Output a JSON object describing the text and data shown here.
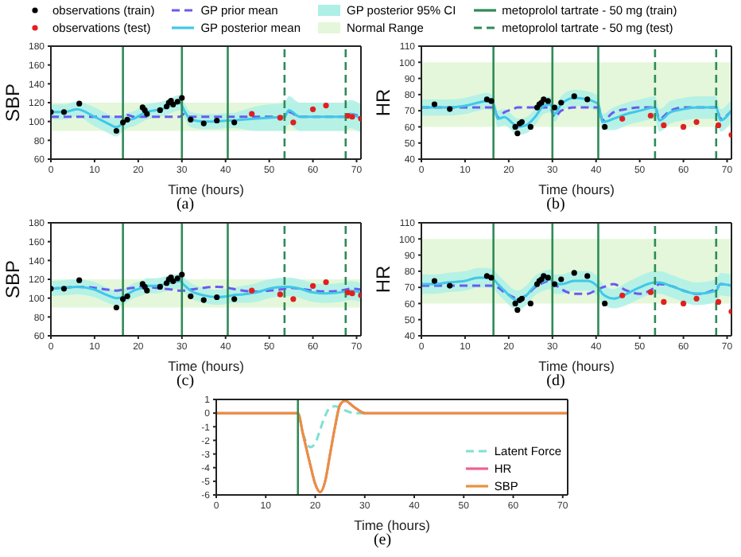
{
  "chart_data": [
    {
      "type": "line",
      "xlabel": "Time (hours)",
      "ylabel": "SBP",
      "xlim": [
        0,
        71
      ],
      "xticks": [
        0,
        10,
        20,
        30,
        40,
        50,
        60,
        70
      ],
      "ylim": [
        60,
        180
      ],
      "yticks": [
        60,
        80,
        100,
        120,
        140,
        160,
        180
      ],
      "legend": "top",
      "annotations": [
        "(a)"
      ],
      "x": [
        0,
        3,
        6,
        10,
        13,
        15,
        16.5,
        17.5,
        19,
        21,
        22,
        24,
        26,
        28,
        29.5,
        30.5,
        32,
        35,
        38,
        40.5,
        41.5,
        44,
        47,
        50,
        53.5,
        54.5,
        57,
        60,
        63,
        67.5,
        68.5,
        71
      ],
      "bands": [
        {
          "axis": "y",
          "from": 90,
          "to": 120,
          "label": "Normal Range",
          "color": "#e4f7da"
        }
      ],
      "ref_lines": [
        {
          "axis": "x",
          "value": 16.5,
          "label": "metoprolol tartrate - 50 mg (train)",
          "color": "#2e8b57",
          "line_style": "solid"
        },
        {
          "axis": "x",
          "value": 30,
          "color": "#2e8b57",
          "line_style": "solid"
        },
        {
          "axis": "x",
          "value": 40.5,
          "color": "#2e8b57",
          "line_style": "solid"
        },
        {
          "axis": "x",
          "value": 53.5,
          "label": "metoprolol tartrate - 50 mg (test)",
          "color": "#2e8b57",
          "line_style": "dashed"
        },
        {
          "axis": "x",
          "value": 67.5,
          "color": "#2e8b57",
          "line_style": "dashed"
        }
      ],
      "series": [
        {
          "name": "observations (train)",
          "type": "scatter",
          "color": "#000000",
          "x": [
            0,
            3,
            6.5,
            15,
            16.5,
            17.5,
            21,
            21.5,
            22,
            25,
            26.5,
            27,
            27.5,
            28,
            29,
            30,
            32,
            35,
            38,
            42
          ],
          "values": [
            110,
            110,
            119,
            90,
            99,
            102,
            115,
            112,
            108,
            112,
            116,
            120,
            122,
            118,
            121,
            125,
            102,
            98,
            101,
            99
          ]
        },
        {
          "name": "observations (test)",
          "type": "scatter",
          "color": "#e02020",
          "x": [
            46,
            52.5,
            55.5,
            60,
            63,
            68,
            69,
            71
          ],
          "values": [
            108,
            104,
            99,
            113,
            117,
            106,
            105,
            103
          ]
        },
        {
          "name": "GP prior mean",
          "color": "#6a5af0",
          "line_style": "dashed",
          "values": [
            105,
            105,
            105,
            105,
            105,
            105,
            105,
            107,
            105,
            105,
            105,
            105,
            105,
            105,
            105,
            108,
            105,
            105,
            105,
            105,
            105,
            105,
            105,
            105,
            105,
            110,
            105,
            105,
            105,
            105,
            108,
            105
          ]
        },
        {
          "name": "GP posterior mean",
          "color": "#40c8e8",
          "values": [
            110,
            110,
            113,
            105,
            98,
            94,
            98,
            101,
            103,
            108,
            110,
            112,
            114,
            118,
            120,
            112,
            102,
            100,
            100,
            101,
            101,
            102,
            103,
            104,
            105,
            112,
            105,
            105,
            105,
            105,
            108,
            103
          ]
        },
        {
          "name": "GP posterior 95% CI",
          "type": "area",
          "color": "#aef0e6",
          "values": [
            null,
            null,
            null,
            null,
            null,
            null,
            null,
            null,
            null,
            null,
            null,
            null,
            null,
            null,
            null,
            null,
            null,
            null,
            null,
            null,
            null,
            null,
            null,
            null,
            null,
            null,
            null,
            null,
            null,
            null,
            null,
            null
          ],
          "lower": [
            102,
            102,
            105,
            95,
            88,
            84,
            90,
            93,
            95,
            100,
            102,
            104,
            106,
            110,
            112,
            104,
            94,
            92,
            92,
            93,
            93,
            92,
            90,
            90,
            90,
            97,
            90,
            90,
            90,
            90,
            93,
            88
          ],
          "upper": [
            118,
            118,
            121,
            115,
            108,
            104,
            106,
            109,
            111,
            116,
            118,
            120,
            122,
            126,
            128,
            120,
            110,
            108,
            108,
            109,
            109,
            112,
            116,
            118,
            120,
            127,
            120,
            120,
            120,
            120,
            123,
            118
          ]
        }
      ]
    },
    {
      "type": "line",
      "xlabel": "Time (hours)",
      "ylabel": "HR",
      "xlim": [
        0,
        71
      ],
      "xticks": [
        0,
        10,
        20,
        30,
        40,
        50,
        60,
        70
      ],
      "ylim": [
        40,
        110
      ],
      "yticks": [
        40,
        50,
        60,
        70,
        80,
        90,
        100,
        110
      ],
      "annotations": [
        "(b)"
      ],
      "x": [
        0,
        3,
        6,
        10,
        13,
        15,
        16.5,
        17.5,
        19,
        21,
        22,
        24,
        26,
        28,
        29.5,
        30.5,
        32,
        35,
        38,
        40.5,
        41.5,
        44,
        47,
        50,
        53.5,
        54.5,
        57,
        60,
        63,
        67.5,
        68.5,
        71
      ],
      "bands": [
        {
          "axis": "y",
          "from": 60,
          "to": 100,
          "color": "#e4f7da"
        }
      ],
      "ref_lines": [
        {
          "axis": "x",
          "value": 16.5,
          "color": "#2e8b57",
          "line_style": "solid"
        },
        {
          "axis": "x",
          "value": 30,
          "color": "#2e8b57",
          "line_style": "solid"
        },
        {
          "axis": "x",
          "value": 40.5,
          "color": "#2e8b57",
          "line_style": "solid"
        },
        {
          "axis": "x",
          "value": 53.5,
          "color": "#2e8b57",
          "line_style": "dashed"
        },
        {
          "axis": "x",
          "value": 67.5,
          "color": "#2e8b57",
          "line_style": "dashed"
        }
      ],
      "series": [
        {
          "type": "scatter",
          "color": "#000000",
          "x": [
            3,
            6.5,
            15,
            16,
            21.5,
            22,
            22.5,
            23,
            25,
            26.5,
            27,
            27.5,
            28,
            29,
            30.5,
            32,
            35,
            38,
            42
          ],
          "values": [
            74,
            71,
            77,
            76,
            60,
            56,
            62,
            63,
            60,
            72,
            74,
            75,
            77,
            76,
            72,
            75,
            79,
            77,
            60
          ]
        },
        {
          "type": "scatter",
          "color": "#e02020",
          "x": [
            46,
            52.5,
            55.5,
            60,
            63,
            68,
            71
          ],
          "values": [
            65,
            67,
            61,
            60,
            63,
            61,
            55
          ]
        },
        {
          "color": "#6a5af0",
          "line_style": "dashed",
          "values": [
            72,
            72,
            72,
            72,
            72,
            72,
            72,
            66,
            69,
            71,
            72,
            72,
            72,
            72,
            72,
            66,
            70,
            72,
            72,
            72,
            64,
            69,
            71,
            72,
            72,
            65,
            70,
            72,
            72,
            72,
            65,
            70
          ]
        },
        {
          "color": "#40c8e8",
          "values": [
            72,
            72,
            72,
            73,
            75,
            76,
            74,
            65,
            66,
            62,
            60,
            61,
            66,
            73,
            74,
            68,
            74,
            78,
            77,
            74,
            63,
            65,
            68,
            70,
            72,
            64,
            69,
            71,
            72,
            72,
            64,
            70
          ]
        },
        {
          "type": "area",
          "color": "#aef0e6",
          "values": [
            null,
            null,
            null,
            null,
            null,
            null,
            null,
            null,
            null,
            null,
            null,
            null,
            null,
            null,
            null,
            null,
            null,
            null,
            null,
            null,
            null,
            null,
            null,
            null,
            null,
            null,
            null,
            null,
            null,
            null,
            null,
            null
          ],
          "lower": [
            67,
            67,
            67,
            68,
            70,
            71,
            69,
            60,
            61,
            57,
            55,
            56,
            61,
            68,
            69,
            63,
            69,
            73,
            72,
            69,
            58,
            58,
            61,
            63,
            65,
            57,
            62,
            64,
            65,
            65,
            57,
            63
          ],
          "upper": [
            77,
            77,
            77,
            78,
            80,
            81,
            79,
            70,
            71,
            67,
            65,
            66,
            71,
            78,
            79,
            73,
            79,
            83,
            82,
            79,
            68,
            72,
            75,
            77,
            79,
            71,
            76,
            78,
            79,
            79,
            71,
            77
          ]
        }
      ]
    },
    {
      "type": "line",
      "xlabel": "Time (hours)",
      "ylabel": "SBP",
      "xlim": [
        0,
        71
      ],
      "xticks": [
        0,
        10,
        20,
        30,
        40,
        50,
        60,
        70
      ],
      "ylim": [
        60,
        180
      ],
      "yticks": [
        60,
        80,
        100,
        120,
        140,
        160,
        180
      ],
      "annotations": [
        "(c)"
      ],
      "x": [
        0,
        3,
        6,
        10,
        13,
        15,
        16.5,
        17.5,
        19,
        21,
        22,
        24,
        26,
        28,
        29.5,
        30.5,
        32,
        35,
        38,
        40.5,
        41.5,
        44,
        47,
        50,
        53.5,
        54.5,
        57,
        60,
        63,
        67.5,
        68.5,
        71
      ],
      "bands": [
        {
          "axis": "y",
          "from": 90,
          "to": 120,
          "color": "#e4f7da"
        }
      ],
      "ref_lines": [
        {
          "axis": "x",
          "value": 16.5,
          "color": "#2e8b57",
          "line_style": "solid"
        },
        {
          "axis": "x",
          "value": 30,
          "color": "#2e8b57",
          "line_style": "solid"
        },
        {
          "axis": "x",
          "value": 40.5,
          "color": "#2e8b57",
          "line_style": "solid"
        },
        {
          "axis": "x",
          "value": 53.5,
          "color": "#2e8b57",
          "line_style": "dashed"
        },
        {
          "axis": "x",
          "value": 67.5,
          "color": "#2e8b57",
          "line_style": "dashed"
        }
      ],
      "series": [
        {
          "type": "scatter",
          "color": "#000000",
          "x": [
            0,
            3,
            6.5,
            15,
            16.5,
            17.5,
            21,
            21.5,
            22,
            25,
            26.5,
            27,
            27.5,
            28,
            29,
            30,
            32,
            35,
            38,
            42
          ],
          "values": [
            110,
            110,
            119,
            90,
            99,
            102,
            115,
            112,
            108,
            112,
            116,
            120,
            122,
            118,
            121,
            125,
            102,
            98,
            101,
            99
          ]
        },
        {
          "type": "scatter",
          "color": "#e02020",
          "x": [
            46,
            52.5,
            55.5,
            60,
            63,
            68,
            69,
            71
          ],
          "values": [
            108,
            104,
            99,
            113,
            117,
            106,
            105,
            103
          ]
        },
        {
          "color": "#6a5af0",
          "line_style": "dashed",
          "values": [
            110,
            111,
            112,
            111,
            109,
            108,
            109,
            110,
            111,
            112,
            112,
            111,
            110,
            109,
            108,
            108,
            109,
            111,
            112,
            111,
            110,
            108,
            107,
            108,
            110,
            111,
            110,
            108,
            107,
            109,
            110,
            109
          ]
        },
        {
          "color": "#40c8e8",
          "values": [
            110,
            111,
            112,
            109,
            103,
            100,
            101,
            104,
            108,
            111,
            113,
            113,
            115,
            117,
            118,
            114,
            108,
            103,
            101,
            102,
            103,
            104,
            106,
            110,
            112,
            112,
            110,
            106,
            105,
            107,
            108,
            106
          ]
        },
        {
          "type": "area",
          "color": "#aef0e6",
          "values": [
            null,
            null,
            null,
            null,
            null,
            null,
            null,
            null,
            null,
            null,
            null,
            null,
            null,
            null,
            null,
            null,
            null,
            null,
            null,
            null,
            null,
            null,
            null,
            null,
            null,
            null,
            null,
            null,
            null,
            null,
            null,
            null
          ],
          "lower": [
            102,
            103,
            104,
            101,
            95,
            92,
            93,
            96,
            100,
            103,
            105,
            105,
            107,
            109,
            110,
            106,
            100,
            95,
            93,
            94,
            95,
            95,
            96,
            100,
            102,
            102,
            100,
            96,
            95,
            97,
            98,
            96
          ],
          "upper": [
            118,
            119,
            120,
            117,
            111,
            108,
            109,
            112,
            116,
            119,
            121,
            121,
            123,
            125,
            126,
            122,
            116,
            111,
            109,
            110,
            111,
            113,
            116,
            120,
            122,
            122,
            120,
            116,
            115,
            117,
            118,
            116
          ]
        }
      ]
    },
    {
      "type": "line",
      "xlabel": "Time (hours)",
      "ylabel": "HR",
      "xlim": [
        0,
        71
      ],
      "xticks": [
        0,
        10,
        20,
        30,
        40,
        50,
        60,
        70
      ],
      "ylim": [
        40,
        110
      ],
      "yticks": [
        40,
        50,
        60,
        70,
        80,
        90,
        100,
        110
      ],
      "annotations": [
        "(d)"
      ],
      "x": [
        0,
        3,
        6,
        10,
        13,
        15,
        16.5,
        17.5,
        19,
        21,
        22,
        24,
        26,
        28,
        29.5,
        30.5,
        32,
        35,
        38,
        40.5,
        41.5,
        44,
        47,
        50,
        53.5,
        54.5,
        57,
        60,
        63,
        67.5,
        68.5,
        71
      ],
      "bands": [
        {
          "axis": "y",
          "from": 60,
          "to": 100,
          "color": "#e4f7da"
        }
      ],
      "ref_lines": [
        {
          "axis": "x",
          "value": 16.5,
          "color": "#2e8b57",
          "line_style": "solid"
        },
        {
          "axis": "x",
          "value": 30,
          "color": "#2e8b57",
          "line_style": "solid"
        },
        {
          "axis": "x",
          "value": 40.5,
          "color": "#2e8b57",
          "line_style": "solid"
        },
        {
          "axis": "x",
          "value": 53.5,
          "color": "#2e8b57",
          "line_style": "dashed"
        },
        {
          "axis": "x",
          "value": 67.5,
          "color": "#2e8b57",
          "line_style": "dashed"
        }
      ],
      "series": [
        {
          "type": "scatter",
          "color": "#000000",
          "x": [
            3,
            6.5,
            15,
            16,
            21.5,
            22,
            22.5,
            23,
            25,
            26.5,
            27,
            27.5,
            28,
            29,
            30.5,
            32,
            35,
            38,
            42
          ],
          "values": [
            74,
            71,
            77,
            76,
            60,
            56,
            62,
            63,
            60,
            72,
            74,
            75,
            77,
            76,
            72,
            75,
            79,
            77,
            60
          ]
        },
        {
          "type": "scatter",
          "color": "#e02020",
          "x": [
            46,
            52.5,
            55.5,
            60,
            63,
            68,
            71
          ],
          "values": [
            65,
            67,
            61,
            60,
            63,
            61,
            55
          ]
        },
        {
          "color": "#6a5af0",
          "line_style": "dashed",
          "values": [
            71,
            71,
            71,
            71,
            71,
            71,
            71,
            70,
            67,
            64,
            63,
            65,
            70,
            73,
            74,
            72,
            69,
            66,
            66,
            69,
            70,
            72,
            68,
            66,
            70,
            72,
            71,
            68,
            66,
            69,
            72,
            71
          ]
        },
        {
          "color": "#40c8e8",
          "values": [
            72,
            72,
            73,
            74,
            76,
            76,
            75,
            72,
            68,
            63,
            62,
            65,
            71,
            74,
            75,
            72,
            72,
            74,
            74,
            70,
            66,
            63,
            66,
            70,
            73,
            73,
            71,
            68,
            66,
            68,
            72,
            71
          ]
        },
        {
          "type": "area",
          "color": "#aef0e6",
          "values": [
            null,
            null,
            null,
            null,
            null,
            null,
            null,
            null,
            null,
            null,
            null,
            null,
            null,
            null,
            null,
            null,
            null,
            null,
            null,
            null,
            null,
            null,
            null,
            null,
            null,
            null,
            null,
            null,
            null,
            null,
            null,
            null
          ],
          "lower": [
            66,
            66,
            67,
            68,
            70,
            70,
            69,
            66,
            62,
            57,
            56,
            59,
            65,
            68,
            69,
            66,
            66,
            68,
            68,
            64,
            60,
            57,
            59,
            63,
            66,
            66,
            64,
            61,
            59,
            61,
            65,
            64
          ],
          "upper": [
            78,
            78,
            79,
            80,
            82,
            82,
            81,
            78,
            74,
            69,
            68,
            71,
            77,
            80,
            81,
            78,
            78,
            80,
            80,
            76,
            72,
            69,
            73,
            77,
            80,
            80,
            78,
            75,
            73,
            75,
            79,
            78
          ]
        }
      ]
    },
    {
      "type": "line",
      "xlabel": "Time (hours)",
      "xlim": [
        0,
        71
      ],
      "xticks": [
        0,
        10,
        20,
        30,
        40,
        50,
        60,
        70
      ],
      "ylim": [
        -6,
        1
      ],
      "yticks": [
        -6,
        -5,
        -4,
        -3,
        -2,
        -1,
        0,
        1
      ],
      "legend": "bottom right",
      "annotations": [
        "(e)"
      ],
      "x": [
        0,
        10,
        16.5,
        17.5,
        19,
        20,
        21,
        22,
        23,
        24,
        25,
        26,
        28,
        30,
        40,
        50,
        60,
        71
      ],
      "ref_lines": [
        {
          "axis": "x",
          "value": 16.5,
          "color": "#2e8b57",
          "line_style": "solid"
        }
      ],
      "series": [
        {
          "name": "Latent Force",
          "color": "#80e0d0",
          "line_style": "dashed",
          "values": [
            null,
            null,
            null,
            -1.5,
            -2.5,
            -2.2,
            -1.2,
            -0.2,
            0.4,
            0.5,
            0.4,
            0.2,
            0,
            0,
            null,
            null,
            null,
            null
          ]
        },
        {
          "name": "HR",
          "color": "#f06090",
          "values": [
            0,
            0,
            0,
            -1.5,
            -3.8,
            -5.2,
            -5.8,
            -5,
            -3,
            -1,
            0.6,
            0.9,
            0.4,
            0,
            0,
            0,
            0,
            0
          ]
        },
        {
          "name": "SBP",
          "color": "#e89040",
          "values": [
            0,
            0,
            0,
            -1.5,
            -3.8,
            -5.2,
            -5.8,
            -5,
            -3,
            -1,
            0.6,
            0.9,
            0.4,
            0,
            0,
            0,
            0,
            0
          ]
        }
      ]
    }
  ]
}
